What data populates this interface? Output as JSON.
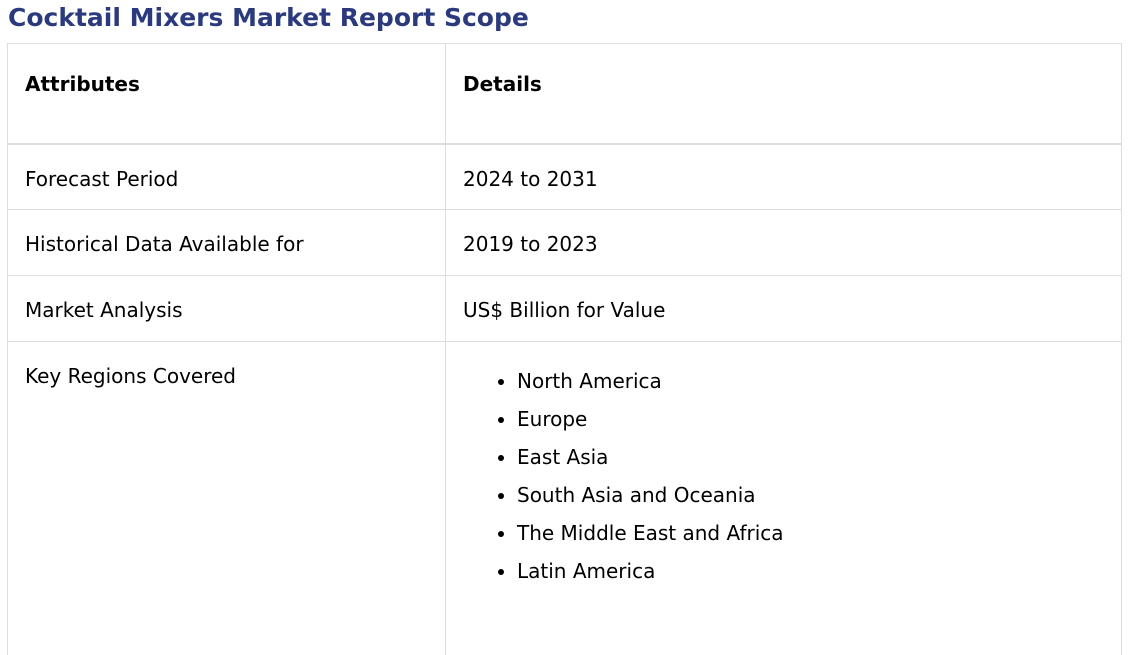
{
  "title": "Cocktail Mixers Market Report Scope",
  "table": {
    "headers": {
      "attributes": "Attributes",
      "details": "Details"
    },
    "rows": [
      {
        "attribute": "Forecast Period",
        "detail": "2024 to 2031"
      },
      {
        "attribute": "Historical Data Available for",
        "detail": "2019 to 2023"
      },
      {
        "attribute": "Market Analysis",
        "detail": "US$ Billion for Value"
      }
    ],
    "regions": {
      "attribute": "Key Regions Covered",
      "items": [
        "North America",
        "Europe",
        "East Asia",
        "South Asia and Oceania",
        "The Middle East and Africa",
        "Latin America"
      ]
    }
  }
}
